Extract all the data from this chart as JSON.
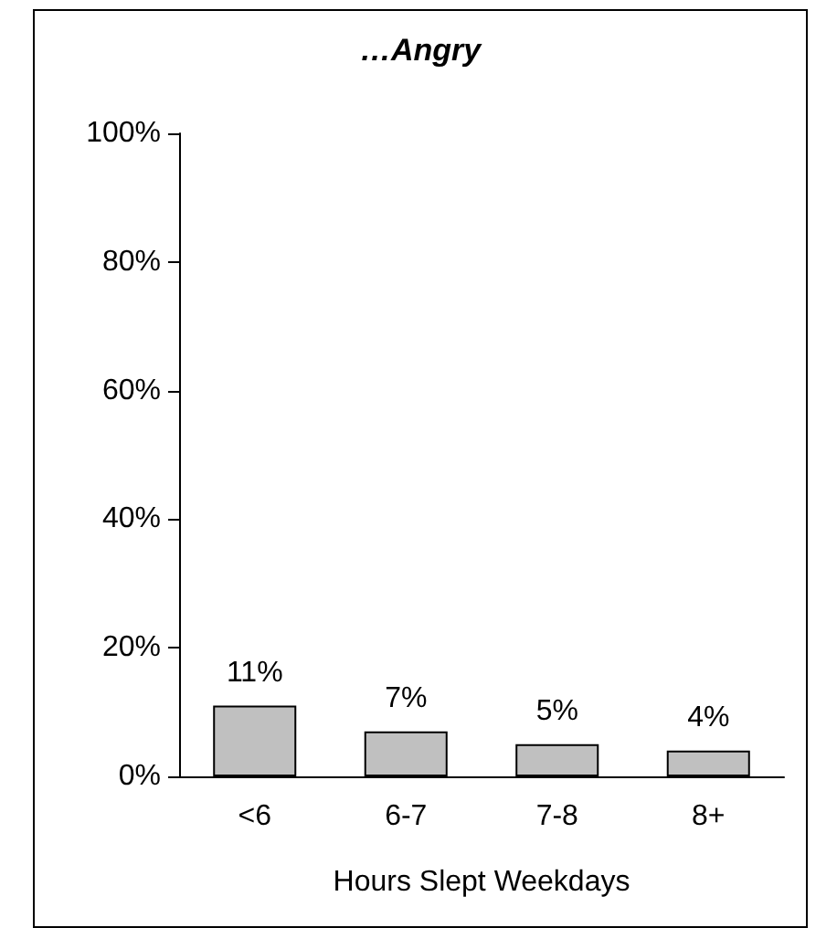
{
  "chart_data": {
    "type": "bar",
    "title": "…Angry",
    "xlabel": "Hours Slept Weekdays",
    "categories": [
      "<6",
      "6-7",
      "7-8",
      "8+"
    ],
    "values": [
      11,
      7,
      5,
      4
    ],
    "value_labels": [
      "11%",
      "7%",
      "5%",
      "4%"
    ],
    "color": "#c0c0c0",
    "ylim": [
      0,
      100
    ],
    "yticks": [
      {
        "value": 0,
        "label": "0%"
      },
      {
        "value": 20,
        "label": "20%"
      },
      {
        "value": 40,
        "label": "40%"
      },
      {
        "value": 60,
        "label": "60%"
      },
      {
        "value": 80,
        "label": "80%"
      },
      {
        "value": 100,
        "label": "100%"
      }
    ],
    "grid": false
  }
}
